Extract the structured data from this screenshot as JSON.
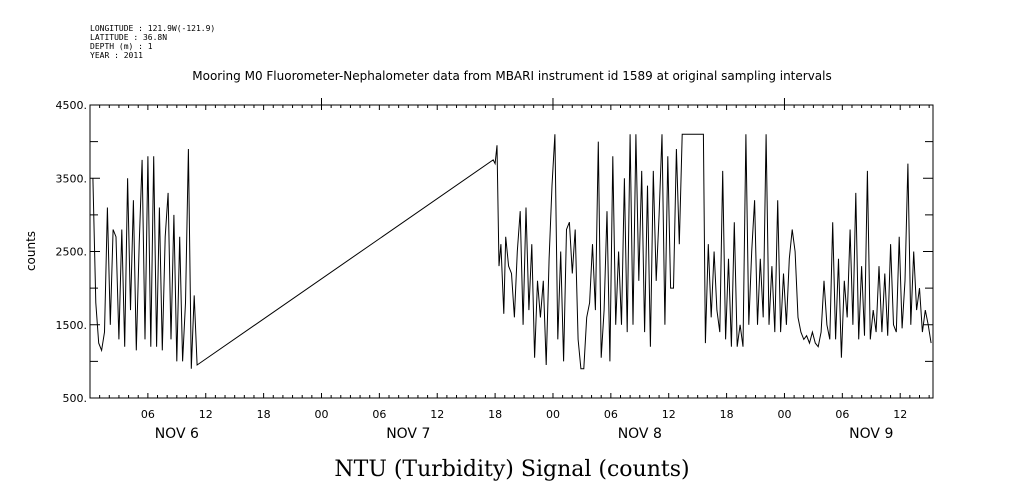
{
  "header": {
    "longitude": "LONGITUDE : 121.9W(-121.9)",
    "latitude": "LATITUDE : 36.8N",
    "depth": "DEPTH (m) : 1",
    "year": "YEAR : 2011",
    "title": "Mooring M0 Fluorometer-Nephalometer data from MBARI instrument id 1589 at original sampling intervals"
  },
  "footer": {
    "caption": "NTU (Turbidity) Signal (counts)"
  },
  "chart_data": {
    "type": "line",
    "title": "Mooring M0 Fluorometer-Nephalometer data from MBARI instrument id 1589 at original sampling intervals",
    "xlabel": "",
    "ylabel": "counts",
    "x_unit": "hours since NOV 6 2011 00:00",
    "xlim": [
      0,
      87.4
    ],
    "ylim": [
      500,
      4500
    ],
    "y_ticks": [
      {
        "v": 500,
        "label": "500."
      },
      {
        "v": 1500,
        "label": "1500."
      },
      {
        "v": 2500,
        "label": "2500."
      },
      {
        "v": 3500,
        "label": "3500."
      },
      {
        "v": 4500,
        "label": "4500."
      }
    ],
    "x_ticks": [
      {
        "h": 6,
        "label": "06"
      },
      {
        "h": 12,
        "label": "12"
      },
      {
        "h": 18,
        "label": "18"
      },
      {
        "h": 24,
        "label": "00"
      },
      {
        "h": 30,
        "label": "06"
      },
      {
        "h": 36,
        "label": "12"
      },
      {
        "h": 42,
        "label": "18"
      },
      {
        "h": 48,
        "label": "00"
      },
      {
        "h": 54,
        "label": "06"
      },
      {
        "h": 60,
        "label": "12"
      },
      {
        "h": 66,
        "label": "18"
      },
      {
        "h": 72,
        "label": "00"
      },
      {
        "h": 78,
        "label": "06"
      },
      {
        "h": 84,
        "label": "12"
      }
    ],
    "day_labels": [
      {
        "h": 9,
        "label": "NOV 6"
      },
      {
        "h": 33,
        "label": "NOV 7"
      },
      {
        "h": 57,
        "label": "NOV 8"
      },
      {
        "h": 81,
        "label": "NOV 9"
      }
    ],
    "series": [
      {
        "color": "#000000",
        "points": [
          [
            0.3,
            3500
          ],
          [
            0.6,
            1800
          ],
          [
            0.9,
            1250
          ],
          [
            1.2,
            1150
          ],
          [
            1.5,
            1400
          ],
          [
            1.8,
            3100
          ],
          [
            2.1,
            1500
          ],
          [
            2.4,
            2800
          ],
          [
            2.7,
            2700
          ],
          [
            3.0,
            1300
          ],
          [
            3.3,
            2800
          ],
          [
            3.6,
            1200
          ],
          [
            3.9,
            3500
          ],
          [
            4.2,
            1700
          ],
          [
            4.5,
            3200
          ],
          [
            4.8,
            1150
          ],
          [
            5.1,
            2600
          ],
          [
            5.4,
            3750
          ],
          [
            5.7,
            1300
          ],
          [
            6.0,
            3800
          ],
          [
            6.3,
            1200
          ],
          [
            6.6,
            3800
          ],
          [
            6.9,
            1200
          ],
          [
            7.2,
            3100
          ],
          [
            7.5,
            1150
          ],
          [
            7.8,
            2700
          ],
          [
            8.1,
            3300
          ],
          [
            8.4,
            1300
          ],
          [
            8.7,
            3000
          ],
          [
            9.0,
            1000
          ],
          [
            9.3,
            2700
          ],
          [
            9.6,
            1000
          ],
          [
            9.9,
            1800
          ],
          [
            10.2,
            3900
          ],
          [
            10.5,
            900
          ],
          [
            10.8,
            1900
          ],
          [
            11.1,
            950
          ],
          [
            41.8,
            3750
          ],
          [
            42.0,
            3700
          ],
          [
            42.2,
            3950
          ],
          [
            42.4,
            2300
          ],
          [
            42.6,
            2600
          ],
          [
            42.9,
            1650
          ],
          [
            43.1,
            2700
          ],
          [
            43.4,
            2300
          ],
          [
            43.7,
            2200
          ],
          [
            44.0,
            1600
          ],
          [
            44.3,
            2500
          ],
          [
            44.6,
            3050
          ],
          [
            44.9,
            1500
          ],
          [
            45.2,
            3100
          ],
          [
            45.5,
            1700
          ],
          [
            45.8,
            2600
          ],
          [
            46.1,
            1050
          ],
          [
            46.4,
            2100
          ],
          [
            46.7,
            1600
          ],
          [
            47.0,
            2100
          ],
          [
            47.3,
            950
          ],
          [
            47.6,
            2400
          ],
          [
            47.9,
            3400
          ],
          [
            48.2,
            4100
          ],
          [
            48.5,
            1300
          ],
          [
            48.8,
            2500
          ],
          [
            49.1,
            1000
          ],
          [
            49.4,
            2800
          ],
          [
            49.7,
            2900
          ],
          [
            50.0,
            2200
          ],
          [
            50.3,
            2800
          ],
          [
            50.6,
            1300
          ],
          [
            50.9,
            900
          ],
          [
            51.2,
            900
          ],
          [
            51.5,
            1600
          ],
          [
            51.8,
            1800
          ],
          [
            52.1,
            2600
          ],
          [
            52.4,
            1700
          ],
          [
            52.7,
            4000
          ],
          [
            53.0,
            1050
          ],
          [
            53.3,
            1700
          ],
          [
            53.6,
            3050
          ],
          [
            53.9,
            1000
          ],
          [
            54.2,
            3800
          ],
          [
            54.5,
            1500
          ],
          [
            54.8,
            2500
          ],
          [
            55.1,
            1500
          ],
          [
            55.4,
            3500
          ],
          [
            55.7,
            1400
          ],
          [
            56.0,
            4100
          ],
          [
            56.3,
            1500
          ],
          [
            56.6,
            4100
          ],
          [
            56.9,
            2100
          ],
          [
            57.2,
            3600
          ],
          [
            57.5,
            1400
          ],
          [
            57.8,
            3400
          ],
          [
            58.1,
            1200
          ],
          [
            58.4,
            3600
          ],
          [
            58.7,
            2100
          ],
          [
            59.0,
            3000
          ],
          [
            59.3,
            4100
          ],
          [
            59.6,
            1500
          ],
          [
            59.9,
            3800
          ],
          [
            60.2,
            2000
          ],
          [
            60.5,
            2000
          ],
          [
            60.8,
            3900
          ],
          [
            61.1,
            2600
          ],
          [
            61.4,
            4100
          ],
          [
            62.5,
            4100
          ],
          [
            63.6,
            4100
          ],
          [
            63.8,
            1250
          ],
          [
            64.1,
            2600
          ],
          [
            64.4,
            1600
          ],
          [
            64.7,
            2500
          ],
          [
            65.0,
            1700
          ],
          [
            65.3,
            1400
          ],
          [
            65.6,
            3600
          ],
          [
            65.9,
            1300
          ],
          [
            66.2,
            2400
          ],
          [
            66.5,
            1200
          ],
          [
            66.8,
            2900
          ],
          [
            67.1,
            1200
          ],
          [
            67.4,
            1500
          ],
          [
            67.7,
            1200
          ],
          [
            68.0,
            4100
          ],
          [
            68.3,
            1500
          ],
          [
            68.6,
            2500
          ],
          [
            68.9,
            3200
          ],
          [
            69.2,
            1500
          ],
          [
            69.5,
            2400
          ],
          [
            69.8,
            1600
          ],
          [
            70.1,
            4100
          ],
          [
            70.4,
            1500
          ],
          [
            70.7,
            2300
          ],
          [
            71.0,
            1400
          ],
          [
            71.3,
            3200
          ],
          [
            71.6,
            1400
          ],
          [
            71.9,
            2200
          ],
          [
            72.2,
            1500
          ],
          [
            72.5,
            2400
          ],
          [
            72.8,
            2800
          ],
          [
            73.1,
            2500
          ],
          [
            73.4,
            1600
          ],
          [
            73.7,
            1400
          ],
          [
            74.0,
            1300
          ],
          [
            74.3,
            1350
          ],
          [
            74.6,
            1250
          ],
          [
            74.9,
            1400
          ],
          [
            75.2,
            1250
          ],
          [
            75.5,
            1200
          ],
          [
            75.8,
            1400
          ],
          [
            76.1,
            2100
          ],
          [
            76.4,
            1500
          ],
          [
            76.7,
            1300
          ],
          [
            77.0,
            2900
          ],
          [
            77.3,
            1300
          ],
          [
            77.6,
            2400
          ],
          [
            77.9,
            1050
          ],
          [
            78.2,
            2100
          ],
          [
            78.5,
            1600
          ],
          [
            78.8,
            2800
          ],
          [
            79.1,
            1500
          ],
          [
            79.4,
            3300
          ],
          [
            79.7,
            1300
          ],
          [
            80.0,
            2300
          ],
          [
            80.3,
            1350
          ],
          [
            80.6,
            3600
          ],
          [
            80.9,
            1300
          ],
          [
            81.2,
            1700
          ],
          [
            81.5,
            1400
          ],
          [
            81.8,
            2300
          ],
          [
            82.1,
            1400
          ],
          [
            82.4,
            2200
          ],
          [
            82.7,
            1350
          ],
          [
            83.0,
            2600
          ],
          [
            83.3,
            1500
          ],
          [
            83.6,
            1400
          ],
          [
            83.9,
            2700
          ],
          [
            84.2,
            1450
          ],
          [
            84.5,
            2100
          ],
          [
            84.8,
            3700
          ],
          [
            85.1,
            1500
          ],
          [
            85.4,
            2500
          ],
          [
            85.7,
            1700
          ],
          [
            86.0,
            2000
          ],
          [
            86.3,
            1400
          ],
          [
            86.6,
            1700
          ],
          [
            86.9,
            1500
          ],
          [
            87.2,
            1250
          ]
        ]
      }
    ]
  }
}
